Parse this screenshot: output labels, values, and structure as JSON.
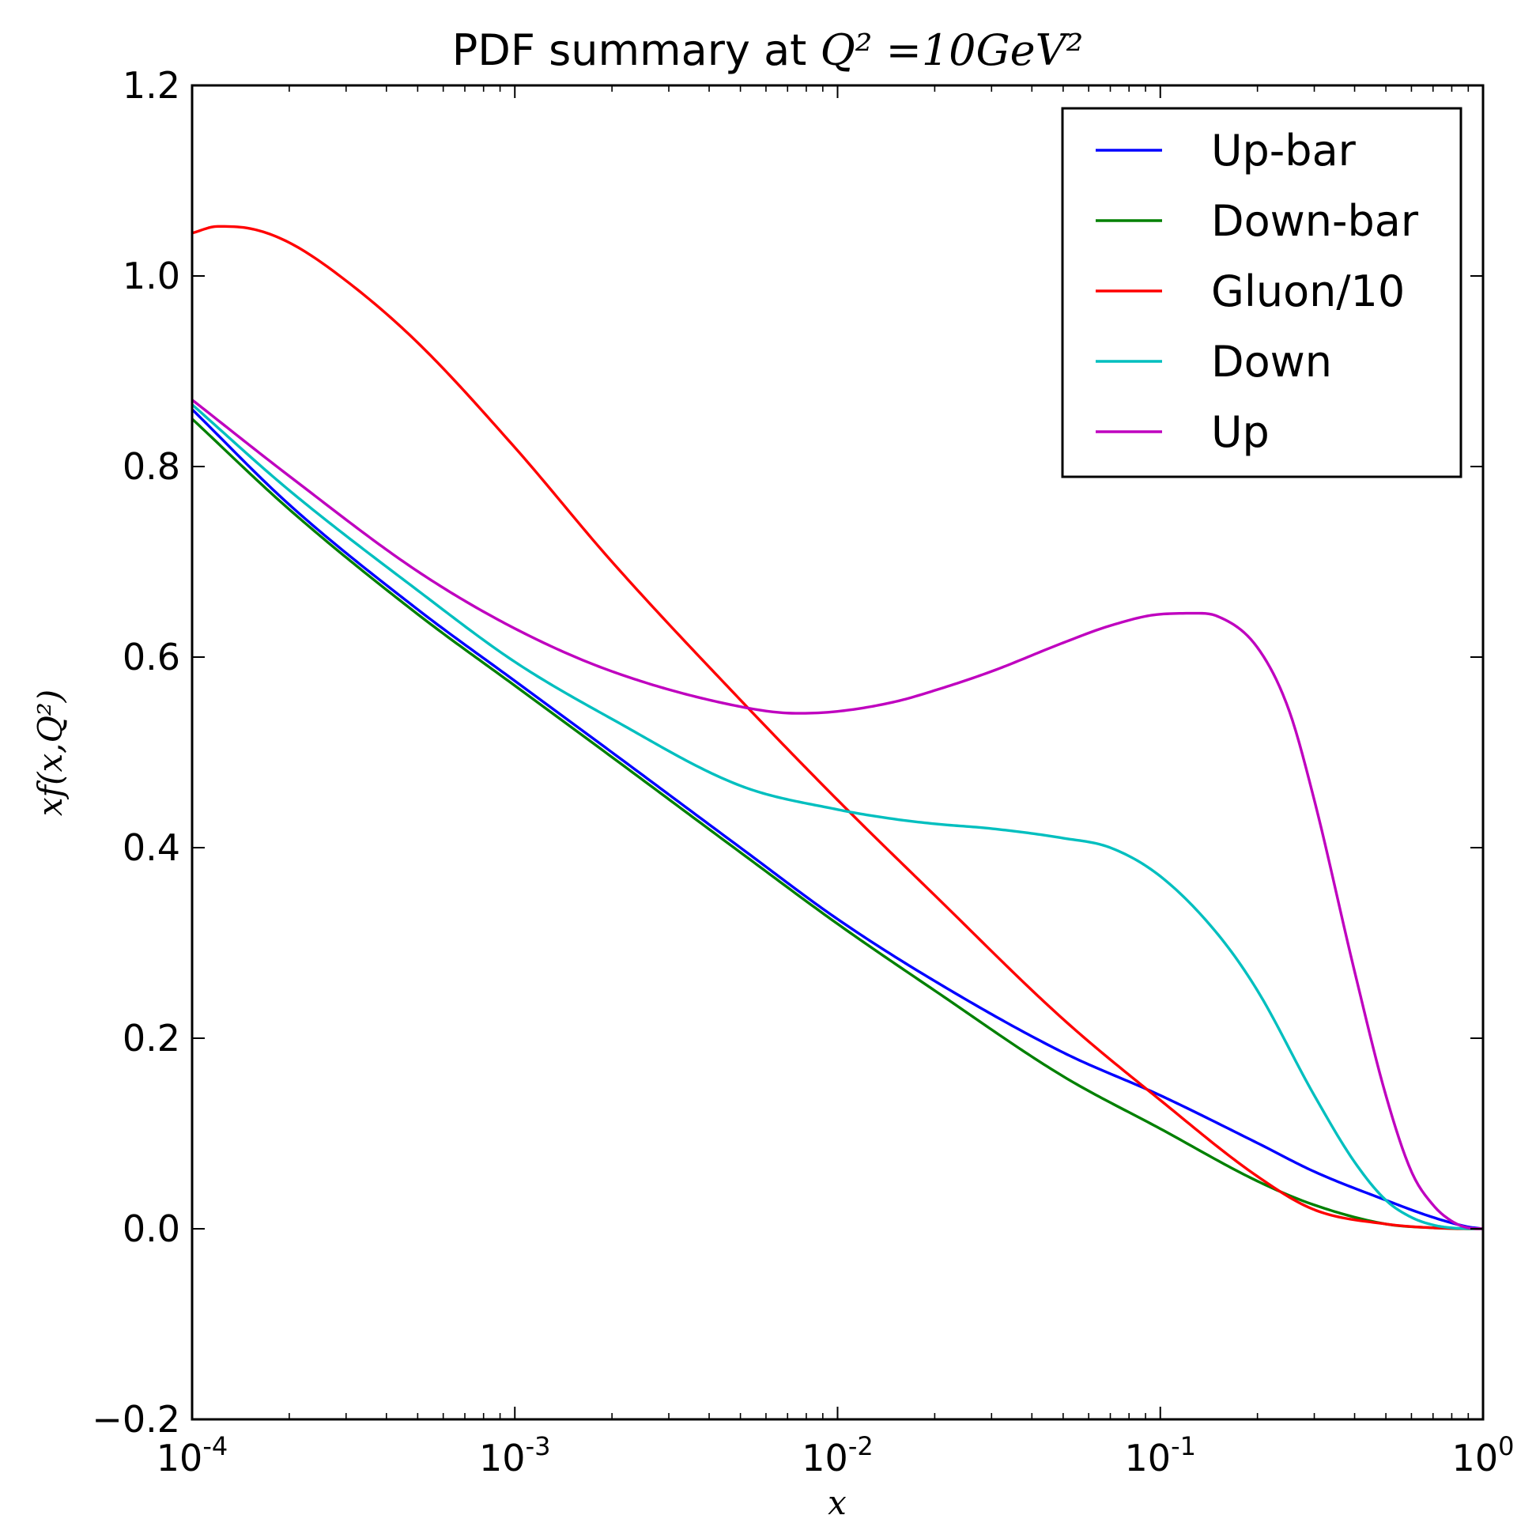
{
  "chart_data": {
    "type": "line",
    "title": {
      "prefix": "PDF summary at ",
      "math": "Q² =10GeV²"
    },
    "xlabel": "x",
    "ylabel": "xf(x,Q²)",
    "x_scale": "log",
    "xlim": [
      0.0001,
      1
    ],
    "ylim": [
      -0.2,
      1.2
    ],
    "grid": false,
    "legend_position": "top-right",
    "x_ticks": [
      {
        "value": 0.0001,
        "base": "10",
        "exp": "-4"
      },
      {
        "value": 0.001,
        "base": "10",
        "exp": "-3"
      },
      {
        "value": 0.01,
        "base": "10",
        "exp": "-2"
      },
      {
        "value": 0.1,
        "base": "10",
        "exp": "-1"
      },
      {
        "value": 1,
        "base": "10",
        "exp": "0"
      }
    ],
    "y_ticks": [
      {
        "value": -0.2,
        "label": "−0.2"
      },
      {
        "value": 0.0,
        "label": "0.0"
      },
      {
        "value": 0.2,
        "label": "0.2"
      },
      {
        "value": 0.4,
        "label": "0.4"
      },
      {
        "value": 0.6,
        "label": "0.6"
      },
      {
        "value": 0.8,
        "label": "0.8"
      },
      {
        "value": 1.0,
        "label": "1.0"
      },
      {
        "value": 1.2,
        "label": "1.2"
      }
    ],
    "series": [
      {
        "name": "Up-bar",
        "color": "#0000ff",
        "x": [
          0.0001,
          0.0002,
          0.0005,
          0.001,
          0.002,
          0.005,
          0.01,
          0.02,
          0.05,
          0.1,
          0.2,
          0.3,
          0.5,
          0.7,
          0.9,
          1.0
        ],
        "y": [
          0.86,
          0.76,
          0.65,
          0.575,
          0.5,
          0.4,
          0.325,
          0.26,
          0.185,
          0.14,
          0.09,
          0.06,
          0.03,
          0.012,
          0.002,
          0.0
        ]
      },
      {
        "name": "Down-bar",
        "color": "#008000",
        "x": [
          0.0001,
          0.0002,
          0.0005,
          0.001,
          0.002,
          0.005,
          0.01,
          0.02,
          0.05,
          0.1,
          0.2,
          0.3,
          0.5,
          0.7,
          0.9,
          1.0
        ],
        "y": [
          0.85,
          0.755,
          0.645,
          0.57,
          0.495,
          0.395,
          0.32,
          0.25,
          0.16,
          0.105,
          0.05,
          0.025,
          0.005,
          0.001,
          0.0,
          0.0
        ]
      },
      {
        "name": "Gluon/10",
        "color": "#ff0000",
        "x": [
          0.0001,
          0.00012,
          0.00015,
          0.0002,
          0.0003,
          0.0005,
          0.001,
          0.002,
          0.005,
          0.01,
          0.02,
          0.05,
          0.1,
          0.2,
          0.3,
          0.5,
          0.7,
          1.0
        ],
        "y": [
          1.045,
          1.052,
          1.05,
          1.035,
          0.995,
          0.93,
          0.82,
          0.7,
          0.555,
          0.45,
          0.35,
          0.22,
          0.135,
          0.055,
          0.02,
          0.005,
          0.001,
          0.0
        ]
      },
      {
        "name": "Down",
        "color": "#00bfbf",
        "x": [
          0.0001,
          0.0002,
          0.0005,
          0.001,
          0.002,
          0.005,
          0.01,
          0.015,
          0.02,
          0.03,
          0.05,
          0.07,
          0.1,
          0.15,
          0.2,
          0.3,
          0.4,
          0.5,
          0.6,
          0.7,
          0.8,
          1.0
        ],
        "y": [
          0.865,
          0.775,
          0.67,
          0.595,
          0.535,
          0.465,
          0.44,
          0.43,
          0.425,
          0.42,
          0.41,
          0.4,
          0.37,
          0.31,
          0.25,
          0.14,
          0.07,
          0.03,
          0.012,
          0.004,
          0.001,
          0.0
        ]
      },
      {
        "name": "Up",
        "color": "#bf00bf",
        "x": [
          0.0001,
          0.0002,
          0.0005,
          0.001,
          0.002,
          0.005,
          0.0075,
          0.01,
          0.015,
          0.02,
          0.03,
          0.05,
          0.07,
          0.1,
          0.13,
          0.15,
          0.2,
          0.25,
          0.3,
          0.4,
          0.5,
          0.6,
          0.7,
          0.8,
          0.9,
          1.0
        ],
        "y": [
          0.87,
          0.79,
          0.69,
          0.63,
          0.585,
          0.548,
          0.541,
          0.543,
          0.553,
          0.565,
          0.585,
          0.615,
          0.633,
          0.645,
          0.646,
          0.643,
          0.61,
          0.545,
          0.45,
          0.27,
          0.14,
          0.06,
          0.025,
          0.008,
          0.001,
          0.0
        ]
      }
    ]
  }
}
